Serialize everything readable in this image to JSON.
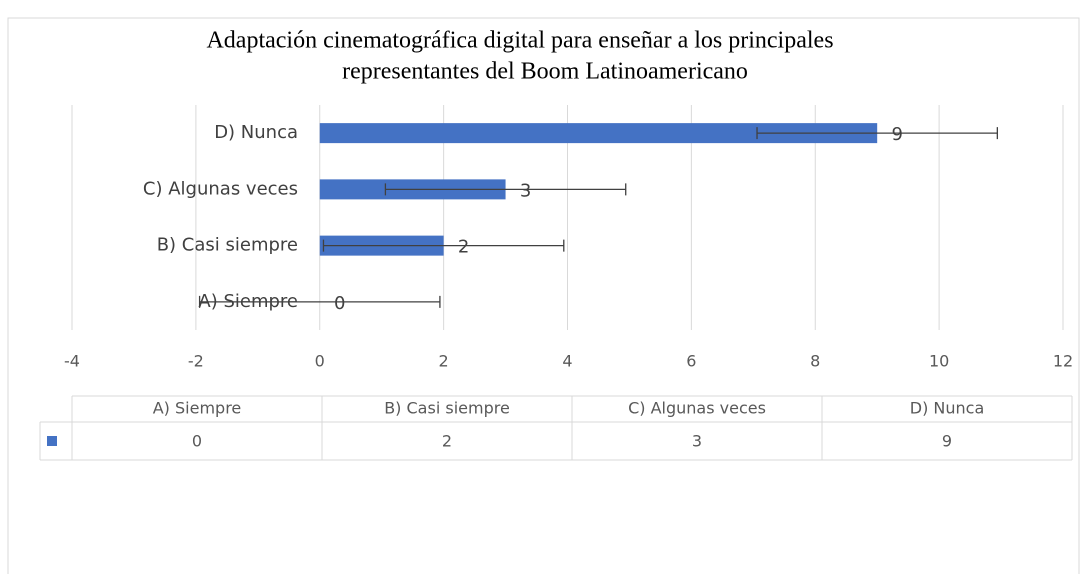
{
  "chart_data": {
    "type": "bar",
    "orientation": "horizontal",
    "title": [
      "Adaptación cinematográfica digital para enseñar a los principales",
      "representantes del Boom Latinoamericano"
    ],
    "categories": [
      "A) Siempre",
      "B) Casi siempre",
      "C) Algunas veces",
      "D) Nunca"
    ],
    "values": [
      0,
      2,
      3,
      9
    ],
    "errors": [
      1.94,
      1.94,
      1.94,
      1.94
    ],
    "color": "#4472c4",
    "xlim": [
      -4,
      12
    ],
    "xticks": [
      -4,
      -2,
      0,
      2,
      4,
      6,
      8,
      10,
      12
    ],
    "grid": true,
    "data_table": true
  }
}
